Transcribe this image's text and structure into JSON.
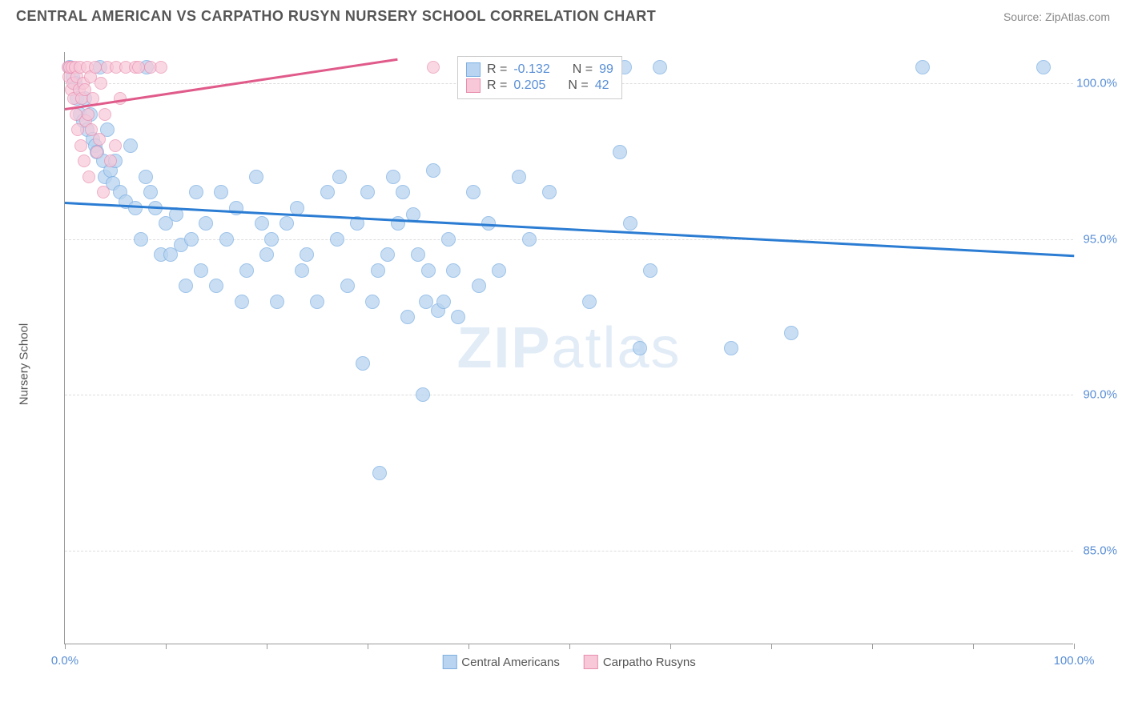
{
  "header": {
    "title": "CENTRAL AMERICAN VS CARPATHO RUSYN NURSERY SCHOOL CORRELATION CHART",
    "source": "Source: ZipAtlas.com"
  },
  "watermark": {
    "part1": "ZIP",
    "part2": "atlas"
  },
  "chart": {
    "type": "scatter",
    "ylabel": "Nursery School",
    "background_color": "#ffffff",
    "grid_color": "#dddddd",
    "axis_color": "#999999",
    "xlim": [
      0,
      100
    ],
    "ylim": [
      82,
      101
    ],
    "x_ticks": [
      0,
      10,
      20,
      30,
      40,
      50,
      60,
      70,
      80,
      90,
      100
    ],
    "x_tick_labels": [
      {
        "pos": 0,
        "label": "0.0%"
      },
      {
        "pos": 100,
        "label": "100.0%"
      }
    ],
    "y_ticks": [
      {
        "pos": 85,
        "label": "85.0%"
      },
      {
        "pos": 90,
        "label": "90.0%"
      },
      {
        "pos": 95,
        "label": "95.0%"
      },
      {
        "pos": 100,
        "label": "100.0%"
      }
    ],
    "ytick_color": "#5a8fd6",
    "ytick_fontsize": 15,
    "series": [
      {
        "name": "Central Americans",
        "marker_color_fill": "#b8d4f0",
        "marker_color_stroke": "#7eb0e3",
        "marker_radius": 9,
        "marker_opacity": 0.75,
        "trend_color": "#2b7cd3",
        "trend_width": 2.5,
        "trend_line": {
          "x1": 0,
          "y1": 96.2,
          "x2": 100,
          "y2": 94.5
        },
        "R": "-0.132",
        "N": "99",
        "points": [
          [
            0.5,
            100.5
          ],
          [
            0.8,
            100.2
          ],
          [
            1.0,
            100.0
          ],
          [
            1.2,
            99.5
          ],
          [
            1.5,
            99.0
          ],
          [
            1.8,
            98.8
          ],
          [
            2.0,
            99.5
          ],
          [
            2.2,
            98.5
          ],
          [
            2.5,
            99.0
          ],
          [
            2.8,
            98.2
          ],
          [
            3.0,
            98.0
          ],
          [
            3.2,
            97.8
          ],
          [
            3.5,
            100.5
          ],
          [
            3.8,
            97.5
          ],
          [
            4.0,
            97.0
          ],
          [
            4.2,
            98.5
          ],
          [
            4.5,
            97.2
          ],
          [
            4.8,
            96.8
          ],
          [
            5.0,
            97.5
          ],
          [
            5.5,
            96.5
          ],
          [
            6.0,
            96.2
          ],
          [
            6.5,
            98.0
          ],
          [
            7.0,
            96.0
          ],
          [
            7.5,
            95.0
          ],
          [
            8.0,
            97.0
          ],
          [
            8.1,
            100.5
          ],
          [
            8.5,
            96.5
          ],
          [
            9.0,
            96.0
          ],
          [
            9.5,
            94.5
          ],
          [
            10.0,
            95.5
          ],
          [
            10.5,
            94.5
          ],
          [
            11.0,
            95.8
          ],
          [
            11.5,
            94.8
          ],
          [
            12.0,
            93.5
          ],
          [
            12.5,
            95.0
          ],
          [
            13.0,
            96.5
          ],
          [
            13.5,
            94.0
          ],
          [
            14.0,
            95.5
          ],
          [
            15.0,
            93.5
          ],
          [
            15.5,
            96.5
          ],
          [
            16.0,
            95.0
          ],
          [
            17.0,
            96.0
          ],
          [
            17.5,
            93.0
          ],
          [
            18.0,
            94.0
          ],
          [
            19.0,
            97.0
          ],
          [
            19.5,
            95.5
          ],
          [
            20.0,
            94.5
          ],
          [
            20.5,
            95.0
          ],
          [
            21.0,
            93.0
          ],
          [
            22.0,
            95.5
          ],
          [
            23.0,
            96.0
          ],
          [
            23.5,
            94.0
          ],
          [
            24.0,
            94.5
          ],
          [
            25.0,
            93.0
          ],
          [
            26.0,
            96.5
          ],
          [
            27.0,
            95.0
          ],
          [
            27.2,
            97.0
          ],
          [
            28.0,
            93.5
          ],
          [
            29.0,
            95.5
          ],
          [
            29.5,
            91.0
          ],
          [
            30.0,
            96.5
          ],
          [
            30.5,
            93.0
          ],
          [
            31.0,
            94.0
          ],
          [
            31.2,
            87.5
          ],
          [
            32.0,
            94.5
          ],
          [
            32.5,
            97.0
          ],
          [
            33.0,
            95.5
          ],
          [
            33.5,
            96.5
          ],
          [
            34.0,
            92.5
          ],
          [
            34.5,
            95.8
          ],
          [
            35.0,
            94.5
          ],
          [
            35.5,
            90.0
          ],
          [
            35.8,
            93.0
          ],
          [
            36.0,
            94.0
          ],
          [
            36.5,
            97.2
          ],
          [
            37.0,
            92.7
          ],
          [
            37.5,
            93.0
          ],
          [
            38.0,
            95.0
          ],
          [
            38.5,
            94.0
          ],
          [
            39.0,
            92.5
          ],
          [
            40.0,
            100.5
          ],
          [
            40.5,
            96.5
          ],
          [
            41.0,
            93.5
          ],
          [
            42.0,
            95.5
          ],
          [
            43.0,
            94.0
          ],
          [
            45.0,
            97.0
          ],
          [
            46.0,
            95.0
          ],
          [
            48.0,
            96.5
          ],
          [
            52.0,
            93.0
          ],
          [
            54.0,
            100.5
          ],
          [
            55.0,
            97.8
          ],
          [
            55.5,
            100.5
          ],
          [
            56.0,
            95.5
          ],
          [
            57.0,
            91.5
          ],
          [
            58.0,
            94.0
          ],
          [
            59.0,
            100.5
          ],
          [
            66.0,
            91.5
          ],
          [
            72.0,
            92.0
          ],
          [
            85.0,
            100.5
          ],
          [
            97.0,
            100.5
          ]
        ]
      },
      {
        "name": "Carpatho Rusyns",
        "marker_color_fill": "#f8c8d8",
        "marker_color_stroke": "#e88fb0",
        "marker_radius": 8,
        "marker_opacity": 0.7,
        "trend_color": "#e05a8a",
        "trend_width": 2.5,
        "trend_line": {
          "x1": 0,
          "y1": 99.2,
          "x2": 33,
          "y2": 100.8
        },
        "R": "0.205",
        "N": "42",
        "points": [
          [
            0.3,
            100.5
          ],
          [
            0.4,
            100.2
          ],
          [
            0.5,
            100.5
          ],
          [
            0.6,
            99.8
          ],
          [
            0.7,
            100.5
          ],
          [
            0.8,
            100.0
          ],
          [
            0.9,
            99.5
          ],
          [
            1.0,
            100.5
          ],
          [
            1.1,
            99.0
          ],
          [
            1.2,
            100.2
          ],
          [
            1.3,
            98.5
          ],
          [
            1.4,
            99.8
          ],
          [
            1.5,
            100.5
          ],
          [
            1.6,
            98.0
          ],
          [
            1.7,
            99.5
          ],
          [
            1.8,
            100.0
          ],
          [
            1.9,
            97.5
          ],
          [
            2.0,
            99.8
          ],
          [
            2.1,
            98.8
          ],
          [
            2.2,
            100.5
          ],
          [
            2.3,
            99.0
          ],
          [
            2.4,
            97.0
          ],
          [
            2.5,
            100.2
          ],
          [
            2.6,
            98.5
          ],
          [
            2.8,
            99.5
          ],
          [
            3.0,
            100.5
          ],
          [
            3.2,
            97.8
          ],
          [
            3.4,
            98.2
          ],
          [
            3.6,
            100.0
          ],
          [
            3.8,
            96.5
          ],
          [
            4.0,
            99.0
          ],
          [
            4.2,
            100.5
          ],
          [
            4.5,
            97.5
          ],
          [
            5.0,
            98.0
          ],
          [
            5.1,
            100.5
          ],
          [
            5.5,
            99.5
          ],
          [
            6.0,
            100.5
          ],
          [
            7.0,
            100.5
          ],
          [
            7.3,
            100.5
          ],
          [
            8.5,
            100.5
          ],
          [
            9.5,
            100.5
          ],
          [
            36.5,
            100.5
          ]
        ]
      }
    ],
    "legend_bottom": [
      {
        "label": "Central Americans",
        "fill": "#b8d4f0",
        "stroke": "#7eb0e3"
      },
      {
        "label": "Carpatho Rusyns",
        "fill": "#f8c8d8",
        "stroke": "#e88fb0"
      }
    ],
    "stats_legend": {
      "r_label": "R =",
      "n_label": "N =",
      "box_border": "#cccccc",
      "box_bg": "#ffffff"
    }
  }
}
